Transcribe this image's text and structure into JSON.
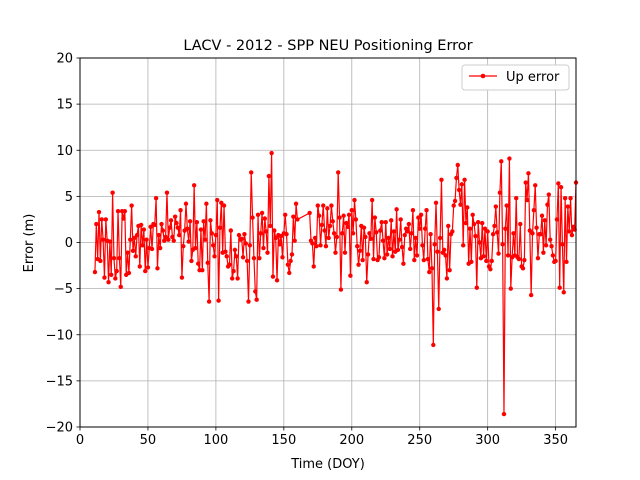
{
  "chart_data": {
    "type": "line",
    "title": "LACV - 2012 - SPP NEU Positioning Error",
    "xlabel": "Time (DOY)",
    "ylabel": "Error (m)",
    "xlim": [
      0,
      365
    ],
    "ylim": [
      -20,
      20
    ],
    "xticks": [
      0,
      50,
      100,
      150,
      200,
      250,
      300,
      350
    ],
    "yticks": [
      -20,
      -15,
      -10,
      -5,
      0,
      5,
      10,
      15,
      20
    ],
    "grid": true,
    "legend_position": "upper right",
    "series": [
      {
        "name": "Up error",
        "color": "#ff0000",
        "marker": "circle",
        "x": [
          11,
          12,
          13,
          14,
          15,
          16,
          17,
          18,
          19,
          20,
          21,
          22,
          23,
          24,
          25,
          26,
          27,
          28,
          29,
          30,
          31,
          32,
          33,
          34,
          35,
          36,
          37,
          38,
          39,
          40,
          41,
          42,
          43,
          44,
          45,
          46,
          47,
          48,
          49,
          50,
          51,
          52,
          53,
          54,
          55,
          56,
          57,
          58,
          59,
          60,
          61,
          62,
          63,
          64,
          65,
          66,
          67,
          68,
          69,
          70,
          71,
          72,
          73,
          74,
          75,
          76,
          77,
          78,
          79,
          80,
          81,
          82,
          83,
          84,
          85,
          86,
          87,
          88,
          89,
          90,
          91,
          92,
          93,
          94,
          95,
          96,
          97,
          98,
          99,
          100,
          101,
          102,
          103,
          104,
          105,
          106,
          107,
          108,
          109,
          110,
          111,
          112,
          113,
          114,
          115,
          116,
          117,
          118,
          119,
          120,
          121,
          122,
          123,
          124,
          125,
          126,
          127,
          128,
          129,
          130,
          131,
          132,
          133,
          134,
          135,
          136,
          137,
          138,
          139,
          140,
          141,
          142,
          143,
          144,
          145,
          146,
          147,
          148,
          149,
          150,
          151,
          152,
          153,
          154,
          155,
          156,
          157,
          158,
          159,
          160,
          169,
          170,
          171,
          172,
          173,
          174,
          175,
          176,
          177,
          178,
          179,
          180,
          181,
          182,
          183,
          184,
          185,
          186,
          187,
          188,
          189,
          190,
          191,
          192,
          193,
          194,
          195,
          196,
          197,
          198,
          199,
          200,
          201,
          202,
          203,
          204,
          205,
          206,
          207,
          208,
          209,
          210,
          211,
          212,
          213,
          214,
          215,
          216,
          217,
          218,
          219,
          220,
          221,
          222,
          223,
          224,
          225,
          226,
          227,
          228,
          229,
          230,
          231,
          232,
          233,
          234,
          235,
          236,
          237,
          238,
          239,
          240,
          241,
          242,
          243,
          244,
          245,
          246,
          247,
          248,
          249,
          250,
          251,
          252,
          253,
          254,
          255,
          256,
          257,
          258,
          259,
          260,
          261,
          262,
          263,
          264,
          265,
          266,
          267,
          268,
          269,
          270,
          271,
          272,
          273,
          274,
          275,
          276,
          277,
          278,
          279,
          280,
          281,
          282,
          283,
          284,
          285,
          286,
          287,
          288,
          289,
          290,
          291,
          292,
          293,
          294,
          295,
          296,
          297,
          298,
          299,
          300,
          301,
          302,
          303,
          304,
          305,
          306,
          307,
          308,
          309,
          310,
          311,
          312,
          313,
          314,
          315,
          316,
          317,
          318,
          319,
          320,
          321,
          322,
          323,
          324,
          325,
          326,
          327,
          328,
          329,
          330,
          331,
          332,
          333,
          334,
          335,
          336,
          337,
          338,
          339,
          340,
          341,
          342,
          343,
          344,
          345,
          346,
          347,
          348,
          349,
          350,
          351,
          352,
          353,
          354,
          355,
          356,
          357,
          358,
          359,
          360,
          361,
          362,
          363,
          364,
          365
        ],
        "y": [
          -3.2,
          2.0,
          -1.8,
          3.3,
          -2.0,
          2.5,
          0.3,
          -3.8,
          2.5,
          0.2,
          -4.3,
          0.1,
          -3.5,
          5.4,
          -1.7,
          -3.9,
          -3.1,
          3.4,
          -1.7,
          -4.8,
          3.4,
          2.6,
          3.4,
          -3.5,
          -1.1,
          -3.3,
          0.3,
          4.0,
          -0.9,
          0.5,
          -1.5,
          0.8,
          1.8,
          -2.6,
          1.9,
          -0.3,
          1.4,
          -3.1,
          0.3,
          -2.7,
          -0.6,
          1.7,
          -0.7,
          2.0,
          1.9,
          4.8,
          -2.8,
          0.8,
          -0.6,
          2.0,
          1.3,
          0.2,
          0.6,
          5.4,
          0.3,
          1.6,
          2.4,
          0.6,
          0.2,
          2.8,
          2.1,
          1.6,
          0.8,
          3.5,
          -3.8,
          -0.4,
          1.3,
          4.2,
          1.5,
          0.1,
          2.3,
          -2.0,
          -0.8,
          6.2,
          -0.6,
          2.2,
          -2.3,
          -3.0,
          1.4,
          -3.0,
          2.3,
          0.3,
          4.2,
          -2.2,
          -6.4,
          2.4,
          1.0,
          -0.3,
          -1.5,
          0.8,
          4.6,
          -6.3,
          1.6,
          4.3,
          -1.1,
          4.0,
          -1.0,
          -1.5,
          -2.6,
          -2.4,
          1.3,
          -3.9,
          -3.1,
          -0.8,
          -1.5,
          -3.9,
          0.8,
          0.3,
          0.4,
          -1.6,
          0.9,
          -0.1,
          -2.0,
          -6.4,
          -0.3,
          7.6,
          2.7,
          -1.7,
          -5.3,
          -6.2,
          3.0,
          -1.7,
          1.0,
          3.2,
          -0.6,
          2.6,
          1.2,
          -1.1,
          7.2,
          1.8,
          9.7,
          -3.7,
          1.3,
          0.5,
          -4.1,
          0.8,
          -0.2,
          0.7,
          -1.6,
          1.0,
          3.0,
          0.9,
          -2.4,
          -3.3,
          -2.0,
          -1.3,
          2.8,
          0.2,
          4.2,
          2.5,
          3.2,
          0.2,
          -0.1,
          -2.6,
          0.5,
          -0.4,
          4.0,
          2.9,
          -0.3,
          1.9,
          4.0,
          1.3,
          -0.4,
          3.7,
          0.5,
          1.8,
          4.0,
          2.3,
          1.0,
          -1.1,
          0.6,
          7.6,
          2.7,
          -5.1,
          1.0,
          2.9,
          -1.1,
          2.1,
          1.7,
          3.0,
          -3.6,
          3.5,
          1.0,
          4.6,
          2.5,
          -0.4,
          -2.4,
          -0.9,
          1.8,
          -1.9,
          1.6,
          0.6,
          -4.3,
          -1.3,
          1.0,
          0.4,
          4.6,
          -1.8,
          2.7,
          1.1,
          -1.9,
          -1.6,
          1.3,
          2.2,
          0.2,
          -1.7,
          2.2,
          -1.3,
          0.5,
          -0.7,
          2.4,
          -1.5,
          1.2,
          -1.0,
          3.6,
          -0.8,
          0.3,
          2.5,
          -0.5,
          -2.3,
          0.8,
          1.5,
          1.2,
          2.0,
          -0.7,
          1.0,
          3.5,
          -1.9,
          0.5,
          -1.4,
          2.7,
          1.5,
          3.0,
          -0.3,
          -1.9,
          1.5,
          3.5,
          -1.8,
          -3.2,
          0.9,
          -2.8,
          -11.1,
          -0.2,
          4.3,
          -1.0,
          -7.2,
          0.5,
          6.8,
          -1.1,
          -0.8,
          -1.4,
          -3.9,
          1.8,
          -3.0,
          0.9,
          1.2,
          4.0,
          4.5,
          7.0,
          8.4,
          5.7,
          4.1,
          6.3,
          -0.3,
          6.8,
          2.1,
          3.8,
          -2.3,
          1.5,
          -2.1,
          3.0,
          2.0,
          0.7,
          -4.9,
          2.2,
          0.0,
          -1.7,
          2.1,
          -1.5,
          1.5,
          -2.0,
          1.2,
          -2.6,
          -2.9,
          -2.0,
          0.9,
          1.8,
          3.9,
          1.1,
          -1.2,
          5.4,
          8.8,
          -0.2,
          -18.6,
          1.5,
          4.0,
          -1.4,
          9.1,
          -5.0,
          -1.6,
          1.0,
          -1.4,
          4.8,
          -1.6,
          -1.8,
          2.0,
          -2.6,
          -2.8,
          -1.9,
          6.5,
          4.6,
          7.5,
          1.3,
          -5.7,
          1.0,
          3.5,
          6.2,
          1.6,
          -1.7,
          0.9,
          0.9,
          2.9,
          -1.1,
          2.4,
          -0.3,
          4.1,
          5.2,
          0.3,
          -0.4,
          -1.4,
          -2.1,
          -2.0,
          2.5,
          6.4,
          -4.9,
          6.0,
          -0.2,
          -5.4,
          4.8,
          -2.1,
          3.9,
          1.2,
          4.8,
          0.8,
          1.7,
          1.4,
          6.5
        ]
      }
    ]
  }
}
